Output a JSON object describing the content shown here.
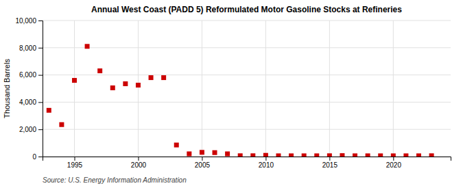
{
  "chart_data": {
    "type": "scatter",
    "title": "Annual West Coast (PADD 5) Reformulated Motor Gasoline Stocks at Refineries",
    "ylabel": "Thousand Barrels",
    "annotations": [
      "Source: U.S. Energy Information Administration"
    ],
    "color": "#cc0000",
    "marker": "square",
    "grid": true,
    "xlim": [
      1992.5,
      2024.5
    ],
    "ylim": [
      0,
      10000
    ],
    "xticks": [
      1995,
      2000,
      2005,
      2010,
      2015,
      2020
    ],
    "yticks": [
      0,
      {
        "value": 2000,
        "label": "2,000"
      },
      {
        "value": 4000,
        "label": "4,000"
      },
      {
        "value": 6000,
        "label": "6,000"
      },
      {
        "value": 8000,
        "label": "8,000"
      },
      {
        "value": 10000,
        "label": "10,000"
      }
    ],
    "x": [
      1993,
      1994,
      1995,
      1996,
      1997,
      1998,
      1999,
      2000,
      2001,
      2002,
      2003,
      2004,
      2005,
      2006,
      2007,
      2008,
      2009,
      2010,
      2011,
      2012,
      2013,
      2014,
      2015,
      2016,
      2017,
      2018,
      2019,
      2020,
      2021,
      2022,
      2023
    ],
    "values": [
      3400,
      2350,
      5600,
      8100,
      6300,
      5050,
      5350,
      5250,
      5800,
      5800,
      850,
      200,
      310,
      290,
      200,
      60,
      60,
      90,
      55,
      55,
      55,
      55,
      60,
      70,
      55,
      55,
      55,
      55,
      55,
      55,
      60
    ]
  }
}
